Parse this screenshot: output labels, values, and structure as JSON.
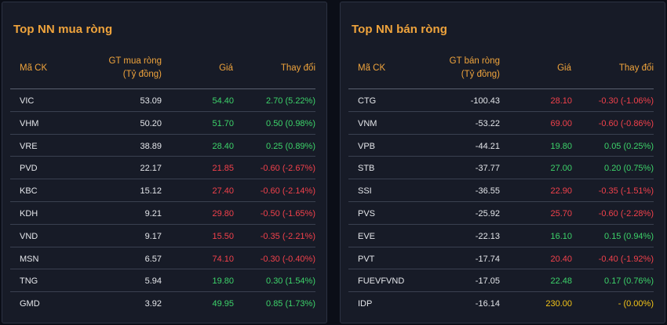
{
  "colors": {
    "accent": "#f0a43c",
    "up": "#3dd36a",
    "down": "#f2414b",
    "reference": "#f5c518",
    "panel_bg": "#171b27",
    "page_bg": "#0b0e17"
  },
  "buy_panel": {
    "title": "Top NN mua ròng",
    "headers": {
      "code": "Mã CK",
      "value_line1": "GT mua ròng",
      "value_line2": "(Tỷ đồng)",
      "price": "Giá",
      "change": "Thay đổi"
    },
    "rows": [
      {
        "code": "VIC",
        "value": "53.09",
        "price": "54.40",
        "change": "2.70 (5.22%)",
        "trend": "up"
      },
      {
        "code": "VHM",
        "value": "50.20",
        "price": "51.70",
        "change": "0.50 (0.98%)",
        "trend": "up"
      },
      {
        "code": "VRE",
        "value": "38.89",
        "price": "28.40",
        "change": "0.25 (0.89%)",
        "trend": "up"
      },
      {
        "code": "PVD",
        "value": "22.17",
        "price": "21.85",
        "change": "-0.60 (-2.67%)",
        "trend": "down"
      },
      {
        "code": "KBC",
        "value": "15.12",
        "price": "27.40",
        "change": "-0.60 (-2.14%)",
        "trend": "down"
      },
      {
        "code": "KDH",
        "value": "9.21",
        "price": "29.80",
        "change": "-0.50 (-1.65%)",
        "trend": "down"
      },
      {
        "code": "VND",
        "value": "9.17",
        "price": "15.50",
        "change": "-0.35 (-2.21%)",
        "trend": "down"
      },
      {
        "code": "MSN",
        "value": "6.57",
        "price": "74.10",
        "change": "-0.30 (-0.40%)",
        "trend": "down"
      },
      {
        "code": "TNG",
        "value": "5.94",
        "price": "19.80",
        "change": "0.30 (1.54%)",
        "trend": "up"
      },
      {
        "code": "GMD",
        "value": "3.92",
        "price": "49.95",
        "change": "0.85 (1.73%)",
        "trend": "up"
      }
    ]
  },
  "sell_panel": {
    "title": "Top NN bán ròng",
    "headers": {
      "code": "Mã CK",
      "value_line1": "GT bán ròng",
      "value_line2": "(Tỷ đồng)",
      "price": "Giá",
      "change": "Thay đổi"
    },
    "rows": [
      {
        "code": "CTG",
        "value": "-100.43",
        "price": "28.10",
        "change": "-0.30 (-1.06%)",
        "trend": "down"
      },
      {
        "code": "VNM",
        "value": "-53.22",
        "price": "69.00",
        "change": "-0.60 (-0.86%)",
        "trend": "down"
      },
      {
        "code": "VPB",
        "value": "-44.21",
        "price": "19.80",
        "change": "0.05 (0.25%)",
        "trend": "up"
      },
      {
        "code": "STB",
        "value": "-37.77",
        "price": "27.00",
        "change": "0.20 (0.75%)",
        "trend": "up"
      },
      {
        "code": "SSI",
        "value": "-36.55",
        "price": "22.90",
        "change": "-0.35 (-1.51%)",
        "trend": "down"
      },
      {
        "code": "PVS",
        "value": "-25.92",
        "price": "25.70",
        "change": "-0.60 (-2.28%)",
        "trend": "down"
      },
      {
        "code": "EVE",
        "value": "-22.13",
        "price": "16.10",
        "change": "0.15 (0.94%)",
        "trend": "up"
      },
      {
        "code": "PVT",
        "value": "-17.74",
        "price": "20.40",
        "change": "-0.40 (-1.92%)",
        "trend": "down"
      },
      {
        "code": "FUEVFVND",
        "value": "-17.05",
        "price": "22.48",
        "change": "0.17 (0.76%)",
        "trend": "up"
      },
      {
        "code": "IDP",
        "value": "-16.14",
        "price": "230.00",
        "change": "- (0.00%)",
        "trend": "ref"
      }
    ]
  }
}
